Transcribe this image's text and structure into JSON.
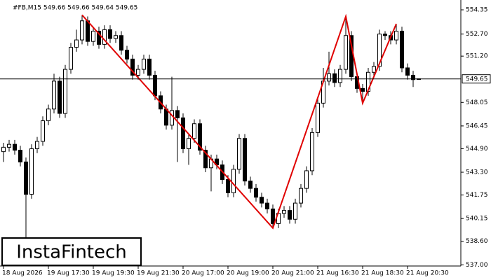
{
  "chart_data": {
    "type": "candlestick",
    "header": "#FB,M15  549.66 549.66 549.64 549.65",
    "logo": "InstaFintech",
    "current_price": 549.65,
    "ylim": [
      536.92,
      554.78
    ],
    "yticks": [
      554.35,
      {
        "value": 552.7,
        "label": "552.70"
      },
      {
        "value": 551.2,
        "label": "551.20"
      },
      548.05,
      546.45,
      {
        "value": 544.9,
        "label": "544.90"
      },
      {
        "value": 543.3,
        "label": "543.30"
      },
      541.75,
      540.15,
      {
        "value": 538.6,
        "label": "538.60"
      },
      {
        "value": 537,
        "label": "537.00"
      }
    ],
    "xticks": [
      {
        "value": 0,
        "label": "18 Aug 2026"
      },
      {
        "value": 8,
        "label": "19 Aug 17:30"
      },
      {
        "value": 16,
        "label": "19 Aug 19:30"
      },
      {
        "value": 24,
        "label": "19 Aug 21:30"
      },
      {
        "value": 32,
        "label": "20 Aug 17:00"
      },
      {
        "value": 40,
        "label": "20 Aug 19:00"
      },
      {
        "value": 48,
        "label": "20 Aug 21:00"
      },
      {
        "value": 56,
        "label": "21 Aug 16:30"
      },
      {
        "value": 64,
        "label": "21 Aug 18:30"
      },
      {
        "value": 72,
        "label": "21 Aug 20:30"
      }
    ],
    "pattern": {
      "color": "#e00000",
      "points": [
        [
          14,
          554.0
        ],
        [
          48,
          539.5
        ],
        [
          61,
          553.9
        ],
        [
          64,
          548.0
        ],
        [
          70,
          553.4
        ]
      ]
    },
    "candles": [
      [
        544.7,
        545.3,
        544.0,
        545.0
      ],
      [
        545.0,
        545.5,
        544.7,
        545.2
      ],
      [
        545.2,
        545.5,
        544.5,
        544.8
      ],
      [
        544.8,
        545.1,
        543.7,
        544.0
      ],
      [
        544.0,
        544.3,
        538.6,
        541.8
      ],
      [
        541.8,
        545.2,
        541.5,
        544.9
      ],
      [
        544.9,
        545.7,
        544.6,
        545.4
      ],
      [
        545.4,
        547.1,
        545.1,
        546.8
      ],
      [
        546.8,
        547.9,
        546.5,
        547.6
      ],
      [
        547.6,
        550.0,
        547.3,
        549.5
      ],
      [
        549.5,
        549.8,
        547.0,
        547.3
      ],
      [
        547.3,
        550.6,
        547.0,
        550.3
      ],
      [
        550.3,
        552.1,
        550.0,
        551.8
      ],
      [
        551.8,
        553.0,
        551.5,
        552.3
      ],
      [
        552.3,
        554.0,
        552.0,
        553.6
      ],
      [
        553.6,
        553.9,
        551.9,
        552.2
      ],
      [
        552.2,
        553.2,
        551.9,
        552.9
      ],
      [
        552.9,
        553.2,
        551.7,
        552.0
      ],
      [
        552.0,
        553.3,
        551.7,
        553.0
      ],
      [
        553.0,
        553.3,
        552.1,
        552.4
      ],
      [
        552.4,
        552.9,
        552.1,
        552.6
      ],
      [
        552.6,
        552.9,
        551.3,
        551.6
      ],
      [
        551.6,
        551.9,
        550.7,
        551.0
      ],
      [
        551.0,
        551.3,
        549.6,
        549.9
      ],
      [
        549.9,
        550.6,
        549.6,
        550.3
      ],
      [
        550.3,
        551.3,
        550.0,
        551.0
      ],
      [
        551.0,
        551.3,
        549.6,
        549.9
      ],
      [
        549.9,
        550.2,
        548.2,
        548.5
      ],
      [
        548.5,
        548.8,
        547.3,
        547.6
      ],
      [
        547.6,
        547.9,
        546.2,
        546.5
      ],
      [
        546.5,
        549.8,
        546.2,
        547.5
      ],
      [
        547.5,
        547.8,
        544.0,
        547.0
      ],
      [
        547.0,
        547.3,
        544.6,
        544.9
      ],
      [
        544.9,
        545.9,
        543.8,
        545.6
      ],
      [
        545.6,
        546.9,
        545.3,
        546.6
      ],
      [
        546.6,
        546.9,
        544.5,
        544.8
      ],
      [
        544.8,
        545.1,
        543.3,
        543.6
      ],
      [
        543.6,
        544.5,
        542.0,
        544.2
      ],
      [
        544.2,
        544.5,
        543.5,
        543.8
      ],
      [
        543.8,
        544.1,
        542.5,
        542.8
      ],
      [
        542.8,
        543.1,
        541.6,
        541.9
      ],
      [
        541.9,
        543.8,
        541.6,
        543.5
      ],
      [
        543.5,
        545.9,
        543.2,
        545.6
      ],
      [
        545.6,
        545.9,
        542.4,
        542.7
      ],
      [
        542.7,
        543.0,
        541.9,
        542.2
      ],
      [
        542.2,
        542.5,
        541.3,
        541.6
      ],
      [
        541.6,
        541.9,
        540.9,
        541.2
      ],
      [
        541.2,
        541.5,
        540.5,
        540.8
      ],
      [
        540.8,
        541.1,
        539.5,
        539.8
      ],
      [
        539.8,
        540.8,
        539.5,
        540.5
      ],
      [
        540.5,
        541.0,
        540.2,
        540.7
      ],
      [
        540.7,
        541.0,
        539.8,
        540.1
      ],
      [
        540.1,
        541.5,
        539.8,
        541.2
      ],
      [
        541.2,
        542.5,
        540.9,
        542.2
      ],
      [
        542.2,
        543.7,
        541.9,
        543.4
      ],
      [
        543.4,
        546.3,
        543.1,
        546.0
      ],
      [
        546.0,
        548.3,
        545.7,
        548.0
      ],
      [
        548.0,
        550.4,
        547.7,
        549.5
      ],
      [
        549.5,
        551.5,
        549.2,
        550.0
      ],
      [
        550.0,
        550.3,
        549.1,
        549.4
      ],
      [
        549.4,
        550.6,
        549.1,
        550.3
      ],
      [
        550.3,
        553.9,
        550.0,
        552.6
      ],
      [
        552.6,
        552.9,
        549.5,
        549.8
      ],
      [
        549.8,
        550.1,
        548.7,
        549.0
      ],
      [
        549.0,
        549.3,
        548.0,
        548.8
      ],
      [
        548.8,
        550.4,
        548.5,
        550.1
      ],
      [
        550.1,
        550.8,
        549.8,
        550.5
      ],
      [
        550.5,
        553.0,
        550.2,
        552.7
      ],
      [
        552.7,
        552.9,
        552.3,
        552.6
      ],
      [
        552.6,
        552.9,
        552.0,
        552.3
      ],
      [
        552.3,
        553.4,
        552.0,
        552.9
      ],
      [
        552.9,
        553.2,
        550.1,
        550.4
      ],
      [
        550.4,
        550.7,
        549.6,
        549.9
      ],
      [
        549.9,
        550.2,
        549.1,
        549.6
      ],
      [
        549.66,
        549.66,
        549.64,
        549.65
      ]
    ]
  }
}
